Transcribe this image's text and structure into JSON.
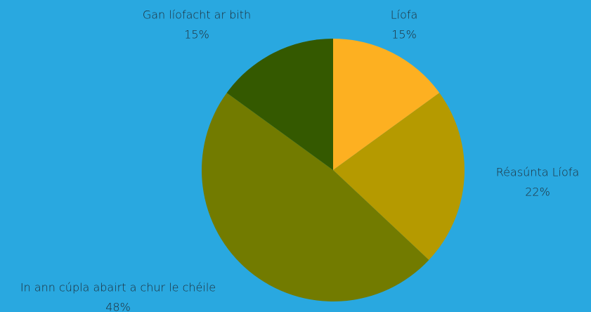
{
  "chart_data": {
    "type": "pie",
    "categories": [
      "Líofa",
      "Réasúnta Líofa",
      "In ann cúpla abairt a chur le chéile",
      "Gan líofacht ar bith"
    ],
    "values": [
      15,
      22,
      48,
      15
    ],
    "value_labels": [
      "15%",
      "22%",
      "48%",
      "15%"
    ],
    "colors": [
      "#fdb021",
      "#b59a00",
      "#727b00",
      "#345900"
    ]
  }
}
